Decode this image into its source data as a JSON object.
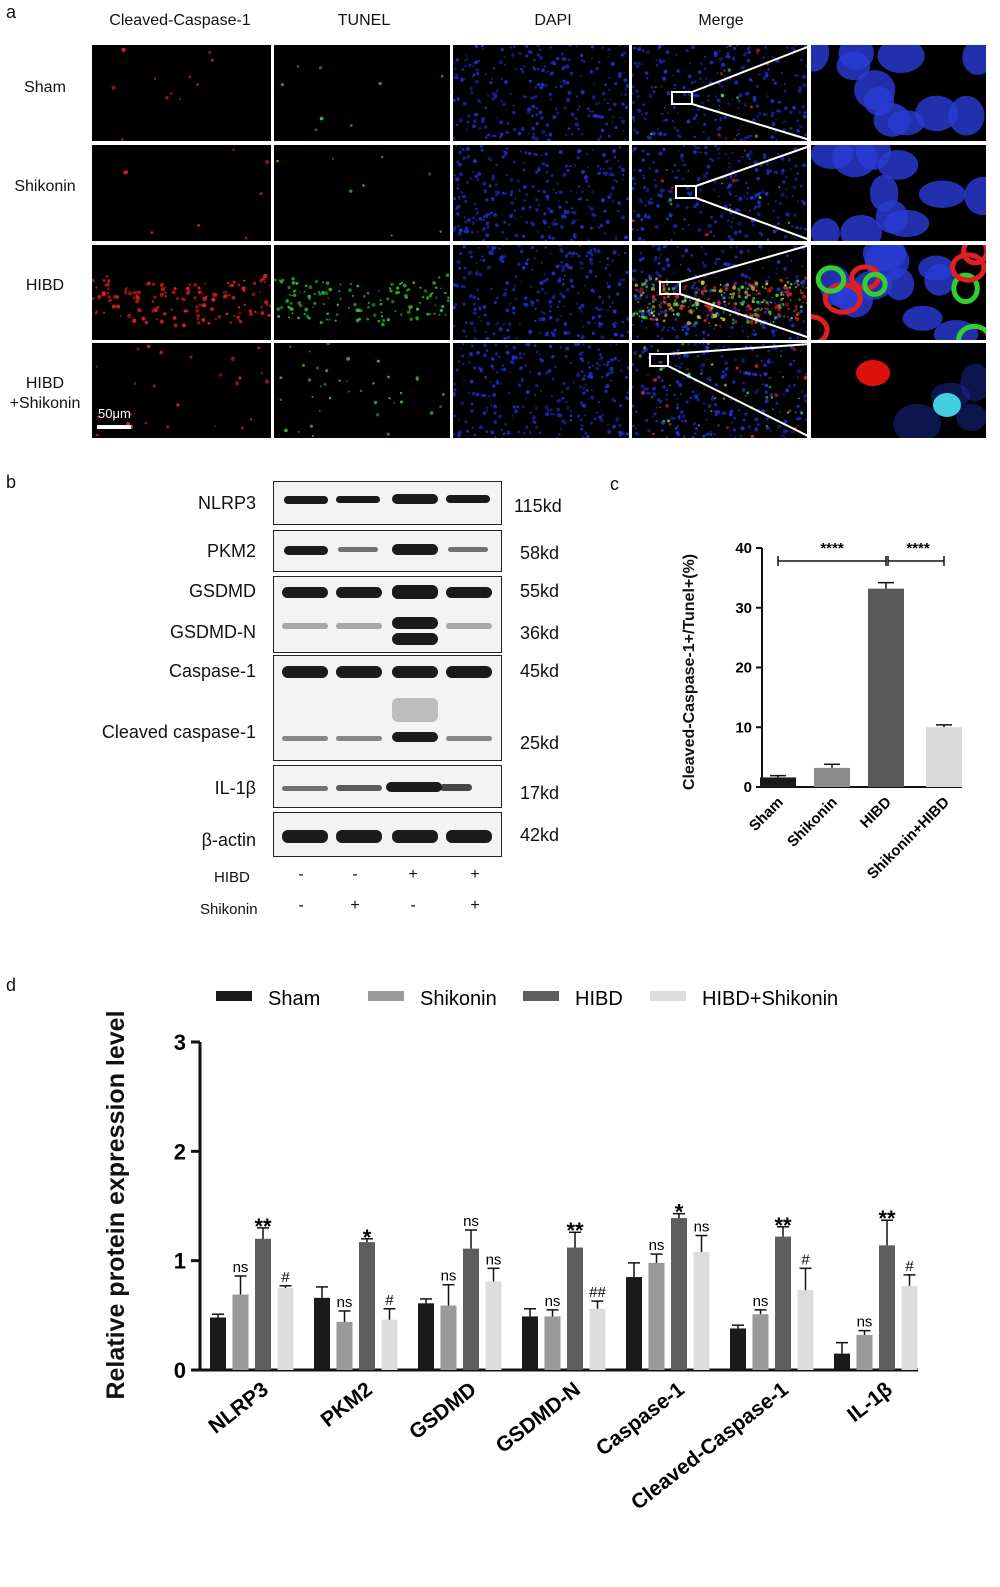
{
  "panel_a": {
    "letter": "a",
    "columns": [
      "Cleaved-Caspase-1",
      "TUNEL",
      "DAPI",
      "Merge"
    ],
    "rows": [
      "Sham",
      "Shikonin",
      "HIBD",
      "HIBD\n+Shikonin"
    ],
    "scale_bar": "50μm"
  },
  "panel_b": {
    "letter": "b",
    "proteins": [
      "NLRP3",
      "PKM2",
      "GSDMD",
      "GSDMD-N",
      "Caspase-1",
      "Cleaved caspase-1",
      "IL-1β",
      "β-actin"
    ],
    "sizes": [
      "115kd",
      "58kd",
      "55kd",
      "36kd",
      "45kd",
      "25kd",
      "17kd",
      "42kd"
    ],
    "conditions": [
      {
        "label": "HIBD",
        "signs": [
          "-",
          "-",
          "+",
          "+"
        ]
      },
      {
        "label": "Shikonin",
        "signs": [
          "-",
          "+",
          "-",
          "+"
        ]
      }
    ]
  },
  "panel_c": {
    "letter": "c",
    "significance": [
      "****",
      "****"
    ]
  },
  "panel_d": {
    "letter": "d"
  },
  "chart_data": [
    {
      "type": "bar",
      "categories": [
        "Sham",
        "Shikonin",
        "HIBD",
        "Shikonin+HIBD"
      ],
      "values": [
        1.6,
        3.2,
        33.2,
        10.0
      ],
      "errors": [
        0.3,
        0.6,
        1.0,
        0.4
      ],
      "colors": [
        "#1a1a1a",
        "#8c8c8c",
        "#5a5a5a",
        "#d9d9d9"
      ],
      "ylabel": "Cleaved-Caspase-1+/Tunel+(%)",
      "ylim": [
        0,
        40
      ],
      "yticks": [
        0,
        10,
        20,
        30,
        40
      ],
      "legend": "none"
    },
    {
      "type": "bar",
      "categories": [
        "NLRP3",
        "PKM2",
        "GSDMD",
        "GSDMD-N",
        "Caspase-1",
        "Cleaved-Caspase-1",
        "IL-1β"
      ],
      "series": [
        {
          "name": "Sham",
          "color": "#1a1a1a",
          "values": [
            0.48,
            0.66,
            0.61,
            0.49,
            0.85,
            0.38,
            0.15
          ],
          "errors": [
            0.03,
            0.1,
            0.04,
            0.07,
            0.13,
            0.03,
            0.1
          ]
        },
        {
          "name": "Shikonin",
          "color": "#9a9a9a",
          "values": [
            0.69,
            0.44,
            0.59,
            0.49,
            0.98,
            0.51,
            0.32
          ],
          "errors": [
            0.17,
            0.1,
            0.19,
            0.06,
            0.08,
            0.04,
            0.04
          ]
        },
        {
          "name": "HIBD",
          "color": "#5e5e5e",
          "values": [
            1.2,
            1.17,
            1.11,
            1.12,
            1.39,
            1.22,
            1.14
          ],
          "errors": [
            0.1,
            0.03,
            0.17,
            0.14,
            0.04,
            0.09,
            0.23
          ]
        },
        {
          "name": "HIBD+Shikonin",
          "color": "#dcdcdc",
          "values": [
            0.75,
            0.46,
            0.81,
            0.56,
            1.08,
            0.73,
            0.77
          ],
          "errors": [
            0.02,
            0.1,
            0.12,
            0.07,
            0.15,
            0.2,
            0.1
          ]
        }
      ],
      "annotations": [
        [
          "",
          "ns",
          "**",
          "#"
        ],
        [
          "",
          "ns",
          "*",
          "#"
        ],
        [
          "",
          "ns",
          "ns",
          "ns"
        ],
        [
          "",
          "ns",
          "**",
          "##"
        ],
        [
          "",
          "ns",
          "*",
          "ns"
        ],
        [
          "",
          "ns",
          "**",
          "#"
        ],
        [
          "",
          "ns",
          "**",
          "#"
        ]
      ],
      "ylabel": "Relative protein expression level",
      "ylim": [
        0,
        3
      ],
      "yticks": [
        0,
        1,
        2,
        3
      ],
      "legend": "top"
    }
  ]
}
